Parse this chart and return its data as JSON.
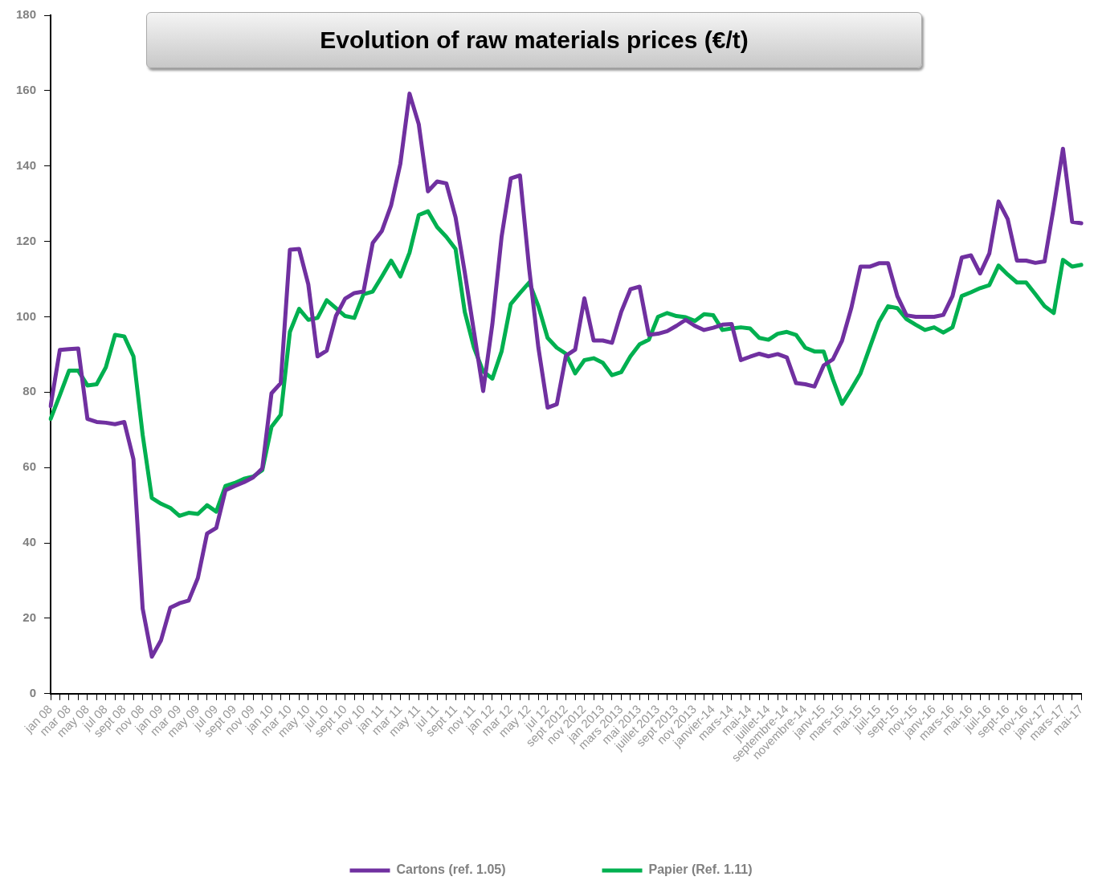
{
  "chart_data": {
    "type": "line",
    "title": "Evolution of raw materials prices (€/t)",
    "categories": [
      "jan 08",
      null,
      "mar 08",
      null,
      "may 08",
      null,
      "jul 08",
      null,
      "sept 08",
      null,
      "nov 08",
      null,
      "jan 09",
      null,
      "mar 09",
      null,
      "may 09",
      null,
      "jul 09",
      null,
      "sept 09",
      null,
      "nov 09",
      null,
      "jan 10",
      null,
      "mar 10",
      null,
      "may 10",
      null,
      "jul 10",
      null,
      "sept 10",
      null,
      "nov 10",
      null,
      "jan 11",
      null,
      "mar 11",
      null,
      "may 11",
      null,
      "jul 11",
      null,
      "sept 11",
      null,
      "nov 11",
      null,
      "jan 12",
      null,
      "mar 12",
      null,
      "may 12",
      null,
      "jul 12",
      null,
      "sept 2012",
      null,
      "nov 2012",
      null,
      "jan 2013",
      null,
      "mars 2013",
      null,
      "mai 2013",
      null,
      "juillet 2013",
      null,
      "sept 2013",
      null,
      "nov 2013",
      null,
      "janvier-14",
      null,
      "mars-14",
      null,
      "mai-14",
      null,
      "juillet-14",
      null,
      "septembre-14",
      null,
      "novembre-14",
      null,
      "janv-15",
      null,
      "mars-15",
      null,
      "mai-15",
      null,
      "juil-15",
      null,
      "sept-15",
      null,
      "nov-15",
      null,
      "janv-16",
      null,
      "mars-16",
      null,
      "mai-16",
      null,
      "juil-16",
      null,
      "sept-16",
      null,
      "nov-16",
      null,
      "janv-17",
      null,
      "mars-17",
      null,
      "mai-17"
    ],
    "series": [
      {
        "name": "Cartons (ref. 1.05)",
        "color": "#7030a0",
        "values": [
          76.3,
          91.2,
          91.4,
          91.6,
          72.9,
          72.1,
          71.9,
          71.5,
          72.1,
          62.2,
          22.6,
          9.8,
          14.2,
          22.8,
          24,
          24.7,
          30.7,
          42.5,
          44,
          54,
          55.1,
          56.1,
          57.4,
          59.8,
          79.7,
          82.4,
          117.8,
          118,
          108.6,
          89.5,
          91,
          100.2,
          104.8,
          106.3,
          106.7,
          119.6,
          122.8,
          129.6,
          140.6,
          159.2,
          151.1,
          133.3,
          135.9,
          135.4,
          126.4,
          111.8,
          96,
          80.3,
          98.1,
          121.2,
          136.7,
          137.5,
          112.8,
          91.8,
          75.9,
          76.8,
          89.7,
          91.3,
          104.9,
          93.7,
          93.7,
          93.1,
          101.3,
          107.3,
          108,
          95.2,
          95.5,
          96.2,
          97.6,
          99.2,
          97.6,
          96.5,
          97.1,
          97.9,
          98.1,
          88.5,
          89.4,
          90.2,
          89.5,
          90.1,
          89.2,
          82.4,
          82.1,
          81.5,
          87.1,
          88.7,
          93.7,
          102.3,
          113.3,
          113.3,
          114.2,
          114.2,
          105.5,
          100.4,
          100,
          100,
          100,
          100.5,
          105.5,
          115.7,
          116.3,
          111.5,
          116.8,
          130.6,
          125.9,
          114.9,
          114.9,
          114.3,
          114.7,
          129.1,
          144.6,
          125.2,
          124.8
        ]
      },
      {
        "name": "Papier (Ref. 1.11)",
        "color": "#00b050",
        "values": [
          72.9,
          79.2,
          85.7,
          85.7,
          81.8,
          82.1,
          86.6,
          95.2,
          94.8,
          89.5,
          68.7,
          51.9,
          50.4,
          49.3,
          47.2,
          48,
          47.7,
          50,
          48.3,
          55.1,
          55.9,
          57,
          57.6,
          59.3,
          70.8,
          74,
          96,
          102.1,
          99.2,
          99.7,
          104.4,
          102.3,
          100.2,
          99.7,
          106,
          106.7,
          110.7,
          114.9,
          110.7,
          117,
          127,
          128,
          123.8,
          121.2,
          118,
          101.3,
          91.8,
          85.5,
          83.6,
          90.8,
          103.4,
          106.3,
          109.1,
          102.8,
          94.4,
          91.8,
          90.2,
          85,
          88.5,
          89,
          87.8,
          84.5,
          85.3,
          89.5,
          92.7,
          93.9,
          100,
          101,
          100.2,
          99.9,
          98.9,
          100.7,
          100.4,
          96.5,
          96.9,
          97.2,
          96.9,
          94.4,
          93.9,
          95.5,
          96,
          95.2,
          91.8,
          90.8,
          90.8,
          83.4,
          76.9,
          80.8,
          85,
          91.8,
          98.6,
          102.8,
          102.3,
          99.4,
          97.9,
          96.5,
          97.2,
          95.8,
          97.2,
          105.5,
          106.5,
          107.6,
          108.4,
          113.6,
          111.2,
          109.1,
          109.1,
          106,
          102.8,
          101,
          115.1,
          113.3,
          113.8
        ]
      }
    ],
    "ylim": [
      0,
      180
    ],
    "yticks": [
      0,
      20,
      40,
      60,
      80,
      100,
      120,
      140,
      160,
      180
    ],
    "grid": false,
    "legend": "bottom",
    "marker": "none",
    "line_style": "solid"
  }
}
